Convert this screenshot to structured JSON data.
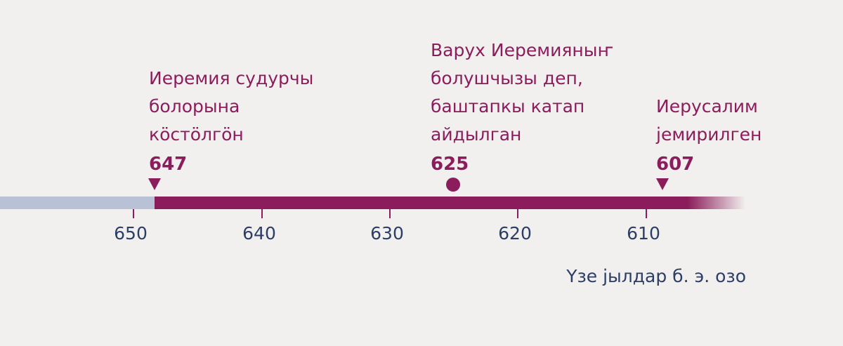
{
  "axis": {
    "ticks": [
      "650",
      "640",
      "630",
      "620",
      "610"
    ],
    "label": "Үзе јылдар б. э. озо"
  },
  "events": [
    {
      "lines": [
        "Иеремия судурчы",
        "болорына",
        "кӧстӧлгӧн"
      ],
      "year": "647",
      "marker": "triangle"
    },
    {
      "lines": [
        "Варух Иеремияныҥ",
        "болушчызы деп,",
        "баштапкы катап",
        "айдылган"
      ],
      "year": "625",
      "marker": "circle"
    },
    {
      "lines": [
        "Иерусалим",
        "јемирилген"
      ],
      "year": "607",
      "marker": "triangle"
    }
  ]
}
